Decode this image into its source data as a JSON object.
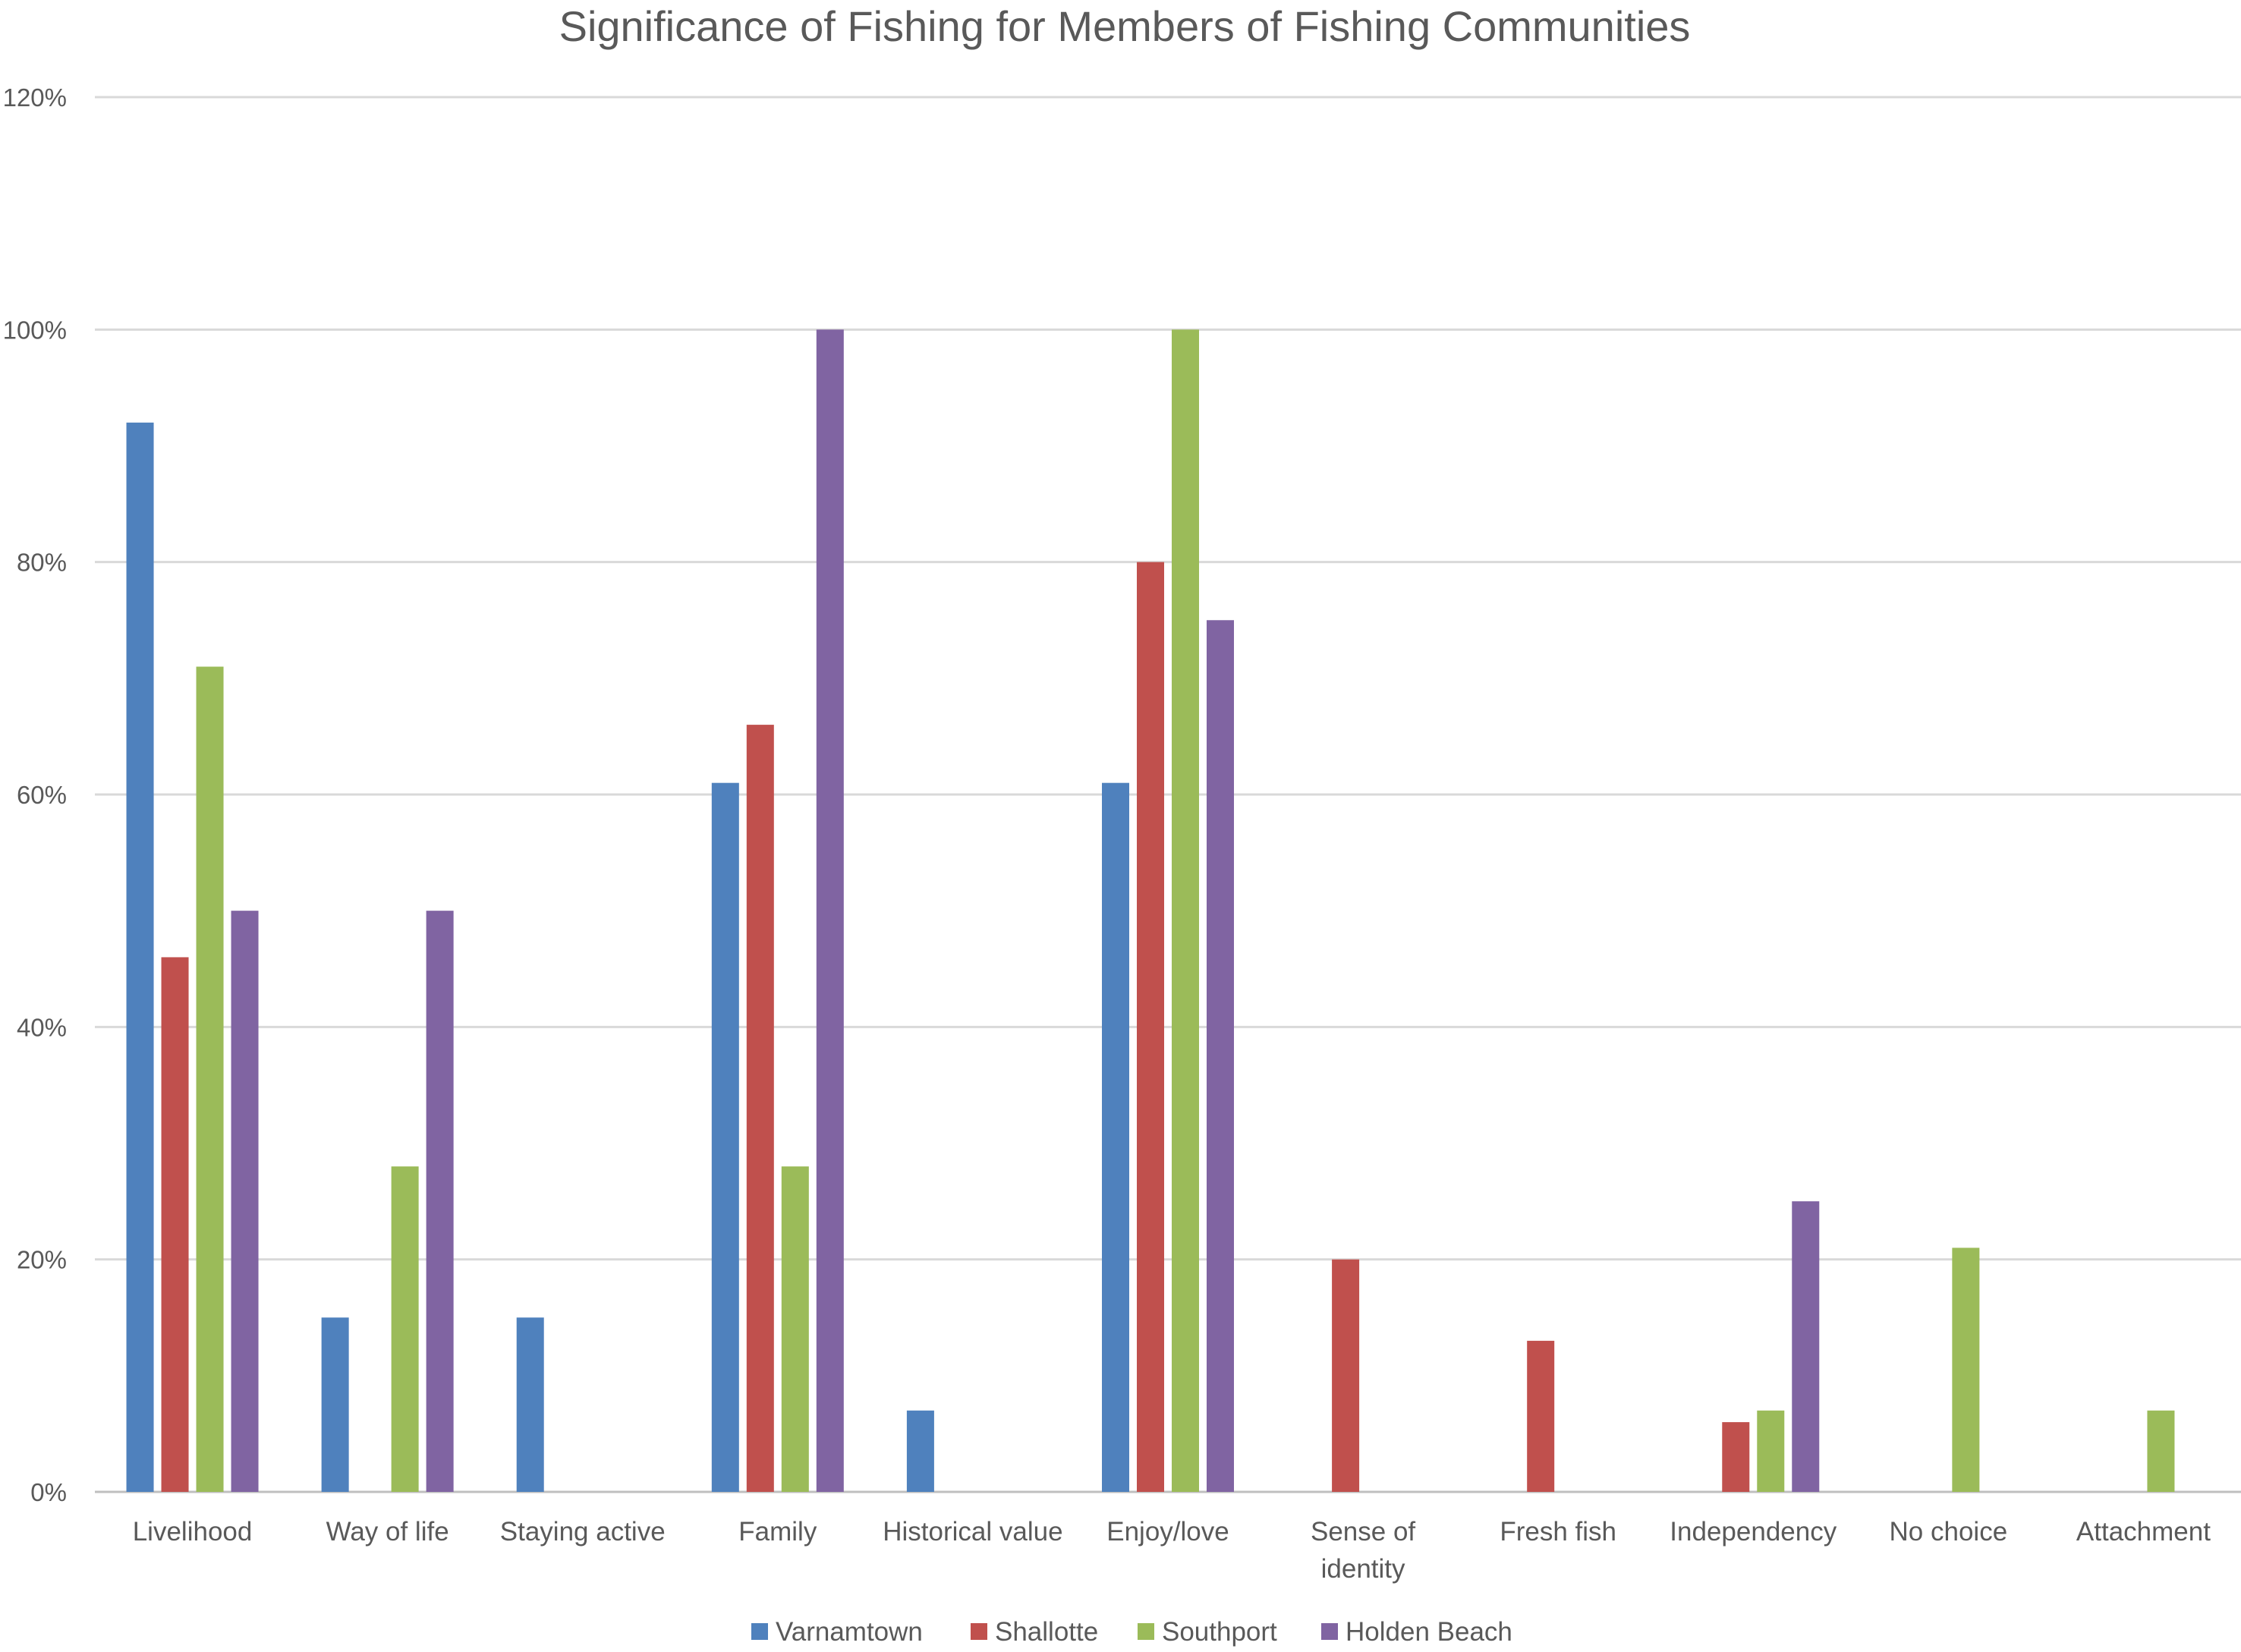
{
  "chart_data": {
    "type": "bar",
    "title": "Significance of Fishing for Members of Fishing Communities",
    "xlabel": "",
    "ylabel": "",
    "ylim": [
      0,
      120
    ],
    "ytick_labels": [
      "0%",
      "20%",
      "40%",
      "60%",
      "80%",
      "100%",
      "120%"
    ],
    "y_ticks": [
      0,
      20,
      40,
      60,
      80,
      100,
      120
    ],
    "grid": true,
    "legend_position": "bottom",
    "categories": [
      [
        "Livelihood"
      ],
      [
        "Way of life"
      ],
      [
        "Staying active"
      ],
      [
        "Family"
      ],
      [
        "Historical value"
      ],
      [
        "Enjoy/love"
      ],
      [
        "Sense of",
        "identity"
      ],
      [
        "Fresh fish"
      ],
      [
        "Independency"
      ],
      [
        "No choice"
      ],
      [
        "Attachment"
      ]
    ],
    "series": [
      {
        "name": "Varnamtown",
        "color": "#4f81bd",
        "values": [
          92,
          15,
          15,
          61,
          7,
          61,
          0,
          0,
          0,
          0,
          0
        ]
      },
      {
        "name": "Shallotte",
        "color": "#c0504d",
        "values": [
          46,
          0,
          0,
          66,
          0,
          80,
          20,
          13,
          6,
          0,
          0
        ]
      },
      {
        "name": "Southport",
        "color": "#9bbb59",
        "values": [
          71,
          28,
          0,
          28,
          0,
          100,
          0,
          0,
          7,
          21,
          7
        ]
      },
      {
        "name": "Holden Beach",
        "color": "#8064a2",
        "values": [
          50,
          50,
          0,
          100,
          0,
          75,
          0,
          0,
          25,
          0,
          0
        ]
      }
    ],
    "colors": {
      "grid": "#d9d9d9",
      "text": "#595959"
    }
  }
}
